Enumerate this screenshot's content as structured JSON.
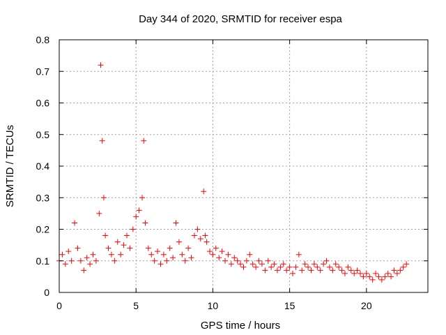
{
  "chart_data": {
    "type": "scatter",
    "title": "Day 344 of 2020, SRMTID for receiver espa",
    "xlabel": "GPS time / hours",
    "ylabel": "SRMTID / TECUs",
    "xlim": [
      0,
      24
    ],
    "ylim": [
      0,
      0.8
    ],
    "xticks": [
      0,
      5,
      10,
      15,
      20
    ],
    "xtick_labels": [
      "0",
      "5",
      "10",
      "15",
      "20"
    ],
    "yticks": [
      0,
      0.1,
      0.2,
      0.3,
      0.4,
      0.5,
      0.6,
      0.7,
      0.8
    ],
    "ytick_labels": [
      "0",
      "0.1",
      "0.2",
      "0.3",
      "0.4",
      "0.5",
      "0.6",
      "0.7",
      "0.8"
    ],
    "grid": true,
    "marker": "+",
    "series": [
      {
        "name": "espa",
        "color": "#ff0000",
        "x": [
          0.0,
          0.2,
          0.4,
          0.6,
          0.8,
          1.0,
          1.2,
          1.4,
          1.6,
          1.8,
          2.0,
          2.2,
          2.4,
          2.6,
          2.7,
          2.8,
          2.9,
          3.0,
          3.2,
          3.4,
          3.6,
          3.8,
          4.0,
          4.2,
          4.4,
          4.6,
          4.8,
          5.0,
          5.2,
          5.4,
          5.5,
          5.6,
          5.8,
          6.0,
          6.2,
          6.4,
          6.6,
          6.8,
          7.0,
          7.2,
          7.4,
          7.6,
          7.8,
          8.0,
          8.2,
          8.4,
          8.6,
          8.8,
          9.0,
          9.2,
          9.4,
          9.5,
          9.6,
          9.8,
          10.0,
          10.2,
          10.4,
          10.6,
          10.8,
          11.0,
          11.2,
          11.4,
          11.6,
          11.8,
          12.0,
          12.2,
          12.4,
          12.6,
          12.8,
          13.0,
          13.2,
          13.4,
          13.6,
          13.8,
          14.0,
          14.2,
          14.4,
          14.6,
          14.8,
          15.0,
          15.2,
          15.4,
          15.6,
          15.8,
          16.0,
          16.2,
          16.4,
          16.6,
          16.8,
          17.0,
          17.2,
          17.4,
          17.6,
          17.8,
          18.0,
          18.2,
          18.4,
          18.6,
          18.8,
          19.0,
          19.2,
          19.4,
          19.6,
          19.8,
          20.0,
          20.2,
          20.4,
          20.6,
          20.8,
          21.0,
          21.2,
          21.4,
          21.6,
          21.8,
          22.0,
          22.2,
          22.4,
          22.6
        ],
        "y": [
          0.1,
          0.12,
          0.09,
          0.13,
          0.1,
          0.22,
          0.14,
          0.1,
          0.07,
          0.11,
          0.09,
          0.12,
          0.1,
          0.25,
          0.72,
          0.48,
          0.3,
          0.18,
          0.14,
          0.12,
          0.1,
          0.16,
          0.12,
          0.15,
          0.18,
          0.14,
          0.2,
          0.24,
          0.26,
          0.3,
          0.48,
          0.22,
          0.14,
          0.12,
          0.1,
          0.13,
          0.09,
          0.12,
          0.1,
          0.14,
          0.11,
          0.22,
          0.16,
          0.12,
          0.1,
          0.14,
          0.11,
          0.18,
          0.2,
          0.17,
          0.32,
          0.18,
          0.16,
          0.13,
          0.12,
          0.14,
          0.11,
          0.13,
          0.1,
          0.12,
          0.09,
          0.11,
          0.1,
          0.09,
          0.08,
          0.1,
          0.12,
          0.09,
          0.08,
          0.1,
          0.09,
          0.07,
          0.1,
          0.08,
          0.09,
          0.07,
          0.08,
          0.09,
          0.07,
          0.08,
          0.06,
          0.08,
          0.12,
          0.07,
          0.09,
          0.08,
          0.07,
          0.09,
          0.08,
          0.07,
          0.09,
          0.1,
          0.08,
          0.07,
          0.09,
          0.08,
          0.07,
          0.06,
          0.08,
          0.07,
          0.06,
          0.07,
          0.06,
          0.05,
          0.06,
          0.05,
          0.04,
          0.06,
          0.05,
          0.04,
          0.05,
          0.06,
          0.05,
          0.07,
          0.06,
          0.07,
          0.08,
          0.09
        ]
      }
    ]
  }
}
